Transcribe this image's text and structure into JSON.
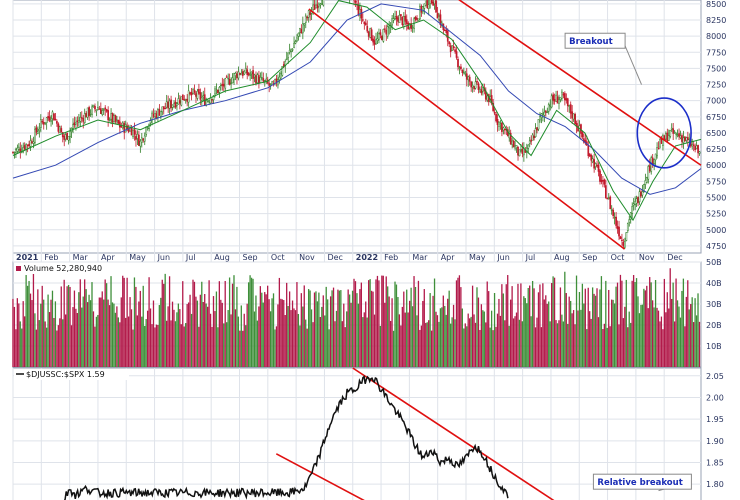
{
  "chart_data": [
    {
      "type": "candlestick",
      "panel": "price",
      "y_ticks": [
        4750,
        5000,
        5250,
        5500,
        5750,
        6000,
        6250,
        6500,
        6750,
        7000,
        7250,
        7500,
        7750,
        8000,
        8250,
        8500
      ],
      "ylim": [
        4640,
        8560
      ],
      "x_range_months": [
        0,
        24.3
      ],
      "x_labels": [
        {
          "text": "2021",
          "m": 0,
          "year": true
        },
        {
          "text": "Feb",
          "m": 1
        },
        {
          "text": "Mar",
          "m": 2
        },
        {
          "text": "Apr",
          "m": 3
        },
        {
          "text": "May",
          "m": 4
        },
        {
          "text": "Jun",
          "m": 5
        },
        {
          "text": "Jul",
          "m": 6
        },
        {
          "text": "Aug",
          "m": 7
        },
        {
          "text": "Sep",
          "m": 8
        },
        {
          "text": "Oct",
          "m": 9
        },
        {
          "text": "Nov",
          "m": 10
        },
        {
          "text": "Dec",
          "m": 11
        },
        {
          "text": "2022",
          "m": 12,
          "year": true
        },
        {
          "text": "Feb",
          "m": 13
        },
        {
          "text": "Mar",
          "m": 14
        },
        {
          "text": "Apr",
          "m": 15
        },
        {
          "text": "May",
          "m": 16
        },
        {
          "text": "Jun",
          "m": 17
        },
        {
          "text": "Jul",
          "m": 18
        },
        {
          "text": "Aug",
          "m": 19
        },
        {
          "text": "Sep",
          "m": 20
        },
        {
          "text": "Oct",
          "m": 21
        },
        {
          "text": "Nov",
          "m": 22
        },
        {
          "text": "Dec",
          "m": 23
        }
      ],
      "close_path": [
        [
          0,
          6200
        ],
        [
          0.6,
          6350
        ],
        [
          1.0,
          6650
        ],
        [
          1.4,
          6800
        ],
        [
          1.8,
          6400
        ],
        [
          2.2,
          6650
        ],
        [
          2.6,
          6800
        ],
        [
          3.0,
          6900
        ],
        [
          3.4,
          6750
        ],
        [
          3.8,
          6600
        ],
        [
          4.2,
          6550
        ],
        [
          4.5,
          6350
        ],
        [
          4.8,
          6700
        ],
        [
          5.2,
          6850
        ],
        [
          5.6,
          6950
        ],
        [
          6.0,
          7050
        ],
        [
          6.4,
          7100
        ],
        [
          6.8,
          7000
        ],
        [
          7.2,
          7150
        ],
        [
          7.6,
          7300
        ],
        [
          8.0,
          7450
        ],
        [
          8.4,
          7400
        ],
        [
          8.8,
          7300
        ],
        [
          9.2,
          7200
        ],
        [
          9.6,
          7600
        ],
        [
          10.0,
          7950
        ],
        [
          10.4,
          8300
        ],
        [
          10.8,
          8550
        ],
        [
          11.2,
          8700
        ],
        [
          11.6,
          8750
        ],
        [
          12.0,
          8600
        ],
        [
          12.4,
          8200
        ],
        [
          12.8,
          7900
        ],
        [
          13.2,
          8100
        ],
        [
          13.6,
          8300
        ],
        [
          14.0,
          8150
        ],
        [
          14.4,
          8400
        ],
        [
          14.8,
          8600
        ],
        [
          15.2,
          8100
        ],
        [
          15.6,
          7700
        ],
        [
          16.0,
          7350
        ],
        [
          16.4,
          7200
        ],
        [
          16.8,
          7050
        ],
        [
          17.1,
          6700
        ],
        [
          17.5,
          6450
        ],
        [
          17.9,
          6150
        ],
        [
          18.2,
          6250
        ],
        [
          18.6,
          6700
        ],
        [
          19.0,
          7000
        ],
        [
          19.4,
          7050
        ],
        [
          19.8,
          6750
        ],
        [
          20.2,
          6350
        ],
        [
          20.6,
          5950
        ],
        [
          21.0,
          5500
        ],
        [
          21.3,
          5100
        ],
        [
          21.55,
          4790
        ],
        [
          21.8,
          5250
        ],
        [
          22.1,
          5500
        ],
        [
          22.4,
          5900
        ],
        [
          22.8,
          6300
        ],
        [
          23.2,
          6500
        ],
        [
          23.6,
          6450
        ],
        [
          24.0,
          6300
        ],
        [
          24.3,
          6150
        ]
      ],
      "ma_short_path": [
        [
          0,
          6150
        ],
        [
          1.5,
          6450
        ],
        [
          3,
          6700
        ],
        [
          4.5,
          6550
        ],
        [
          6,
          6850
        ],
        [
          7.5,
          7150
        ],
        [
          9,
          7300
        ],
        [
          10.5,
          7900
        ],
        [
          11.5,
          8550
        ],
        [
          12.5,
          8450
        ],
        [
          13.5,
          8100
        ],
        [
          14.5,
          8250
        ],
        [
          15.5,
          7950
        ],
        [
          16.5,
          7300
        ],
        [
          17.5,
          6500
        ],
        [
          18.3,
          6150
        ],
        [
          19.2,
          6850
        ],
        [
          20.2,
          6500
        ],
        [
          21.2,
          5600
        ],
        [
          21.9,
          5150
        ],
        [
          22.6,
          5750
        ],
        [
          23.4,
          6300
        ],
        [
          24.3,
          6400
        ]
      ],
      "ma_long_path": [
        [
          0,
          5800
        ],
        [
          1.5,
          6000
        ],
        [
          3,
          6350
        ],
        [
          4.5,
          6650
        ],
        [
          6,
          6850
        ],
        [
          7.5,
          7000
        ],
        [
          9,
          7200
        ],
        [
          10.5,
          7600
        ],
        [
          11.8,
          8250
        ],
        [
          13,
          8500
        ],
        [
          14.5,
          8400
        ],
        [
          15.5,
          8050
        ],
        [
          16.5,
          7700
        ],
        [
          17.5,
          7150
        ],
        [
          18.5,
          6800
        ],
        [
          19.5,
          6600
        ],
        [
          20.5,
          6250
        ],
        [
          21.5,
          5800
        ],
        [
          22.5,
          5550
        ],
        [
          23.4,
          5650
        ],
        [
          24.3,
          5950
        ]
      ],
      "channel_lines": [
        {
          "from": [
            10.45,
            8420
          ],
          "to": [
            21.6,
            4700
          ]
        },
        {
          "from": [
            15.0,
            8790
          ],
          "to": [
            24.3,
            6000
          ]
        }
      ],
      "annotations": [
        {
          "label": "Breakout",
          "box_at": [
            19.5,
            8045
          ],
          "arrow_to": [
            22.2,
            7250
          ],
          "circle_center": [
            23.0,
            6500
          ],
          "circle_radius_months": 0.95,
          "circle_radius_units": 540
        }
      ],
      "colors": {
        "up": "#2d7d23",
        "down": "#c2192b",
        "ma_short": "#1e8c2a",
        "ma_long": "#3348b3",
        "channel": "#e01010"
      }
    },
    {
      "type": "bar",
      "panel": "volume",
      "title": "Volume 52,280,940",
      "y_ticks": [
        {
          "value": 10,
          "label": "10B"
        },
        {
          "value": 20,
          "label": "20B"
        },
        {
          "value": 30,
          "label": "30B"
        },
        {
          "value": 40,
          "label": "40B"
        },
        {
          "value": 50,
          "label": "50B"
        }
      ],
      "ylim": [
        0,
        50
      ],
      "typical_range": [
        17,
        44
      ],
      "colors": {
        "up": "#3f8f3a",
        "down": "#b21a4a"
      }
    },
    {
      "type": "line",
      "panel": "ratio",
      "title": "$DJUSSC:$SPX 1.59",
      "y_ticks": [
        1.8,
        1.85,
        1.9,
        1.95,
        2.0,
        2.05
      ],
      "ylim": [
        1.745,
        2.068
      ],
      "series": [
        {
          "values": [
            [
              1.8,
              1.765
            ],
            [
              2.0,
              1.79
            ],
            [
              2.2,
              1.775
            ],
            [
              2.6,
              1.79
            ],
            [
              3.0,
              1.78
            ],
            [
              3.5,
              1.78
            ],
            [
              4.5,
              1.78
            ],
            [
              6.0,
              1.78
            ],
            [
              8.0,
              1.78
            ],
            [
              9.8,
              1.78
            ],
            [
              10.3,
              1.79
            ],
            [
              10.6,
              1.83
            ],
            [
              10.9,
              1.88
            ],
            [
              11.2,
              1.94
            ],
            [
              11.5,
              1.98
            ],
            [
              11.8,
              2.01
            ],
            [
              12.1,
              2.02
            ],
            [
              12.4,
              2.04
            ],
            [
              12.7,
              2.05
            ],
            [
              13.0,
              2.02
            ],
            [
              13.3,
              1.99
            ],
            [
              13.6,
              1.96
            ],
            [
              13.9,
              1.93
            ],
            [
              14.2,
              1.89
            ],
            [
              14.5,
              1.86
            ],
            [
              14.8,
              1.88
            ],
            [
              15.1,
              1.85
            ],
            [
              15.4,
              1.86
            ],
            [
              15.7,
              1.84
            ],
            [
              16.0,
              1.86
            ],
            [
              16.3,
              1.89
            ],
            [
              16.6,
              1.87
            ],
            [
              16.9,
              1.83
            ],
            [
              17.2,
              1.8
            ],
            [
              17.5,
              1.77
            ]
          ]
        }
      ],
      "channel_lines": [
        {
          "from": [
            12.0,
            2.068
          ],
          "to": [
            19.5,
            1.745
          ]
        },
        {
          "from": [
            9.3,
            1.87
          ],
          "to": [
            12.9,
            1.745
          ]
        }
      ],
      "annotations": [
        {
          "label": "Relative breakout",
          "box_at": [
            20.5,
            1.823
          ],
          "arrow_to": [
            22.8,
            1.785
          ]
        }
      ],
      "colors": {
        "line": "#111111",
        "channel": "#e01010"
      }
    }
  ]
}
